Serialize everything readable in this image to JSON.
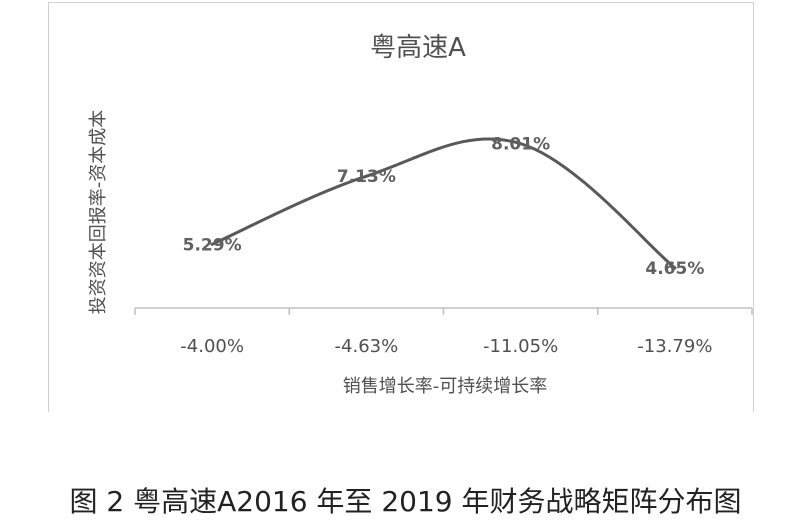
{
  "caption": "图 2 粤高速A2016 年至 2019 年财务战略矩阵分布图",
  "chart_data": {
    "type": "line",
    "title": "粤高速A",
    "xlabel": "销售增长率-可持续增长率",
    "ylabel": "投资资本回报率-资本成本",
    "categories": [
      "-4.00%",
      "-4.63%",
      "-11.05%",
      "-13.79%"
    ],
    "series": [
      {
        "values": [
          5.29,
          7.13,
          8.01,
          4.65
        ],
        "labels": [
          "5.29%",
          "7.13%",
          "8.01%",
          "4.65%"
        ],
        "color": "#595959"
      }
    ],
    "ylim": [
      0,
      10
    ],
    "grid": false,
    "legend": "none"
  }
}
